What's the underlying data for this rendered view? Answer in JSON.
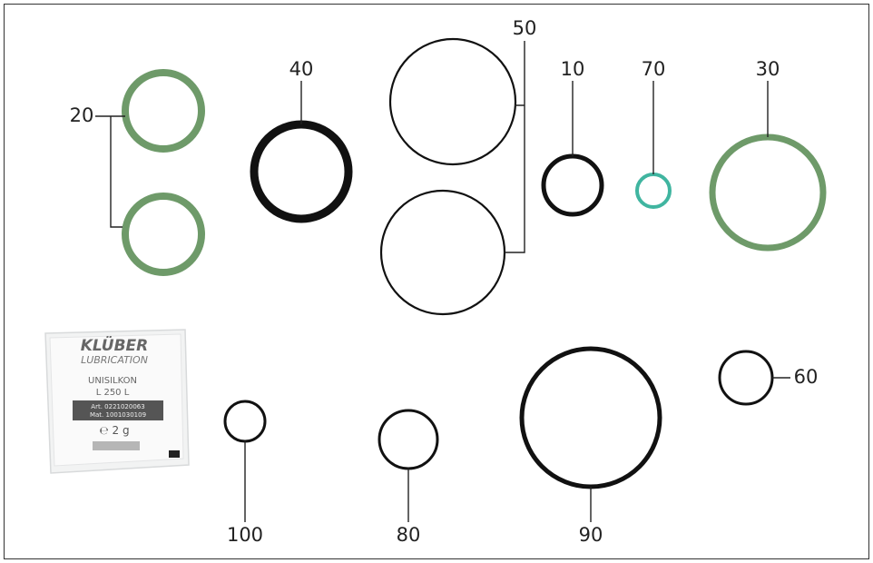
{
  "callouts": [
    "20",
    "40",
    "50",
    "10",
    "70",
    "30",
    "60",
    "100",
    "80",
    "90"
  ],
  "sachet": {
    "brand": "KLÜBER",
    "subbrand": "LUBRICATION",
    "product": "UNISILKON",
    "grade": "L 250 L",
    "art": "Art. 0221020063",
    "mat": "Mat. 1001030109",
    "weight": "℮ 2 g"
  }
}
